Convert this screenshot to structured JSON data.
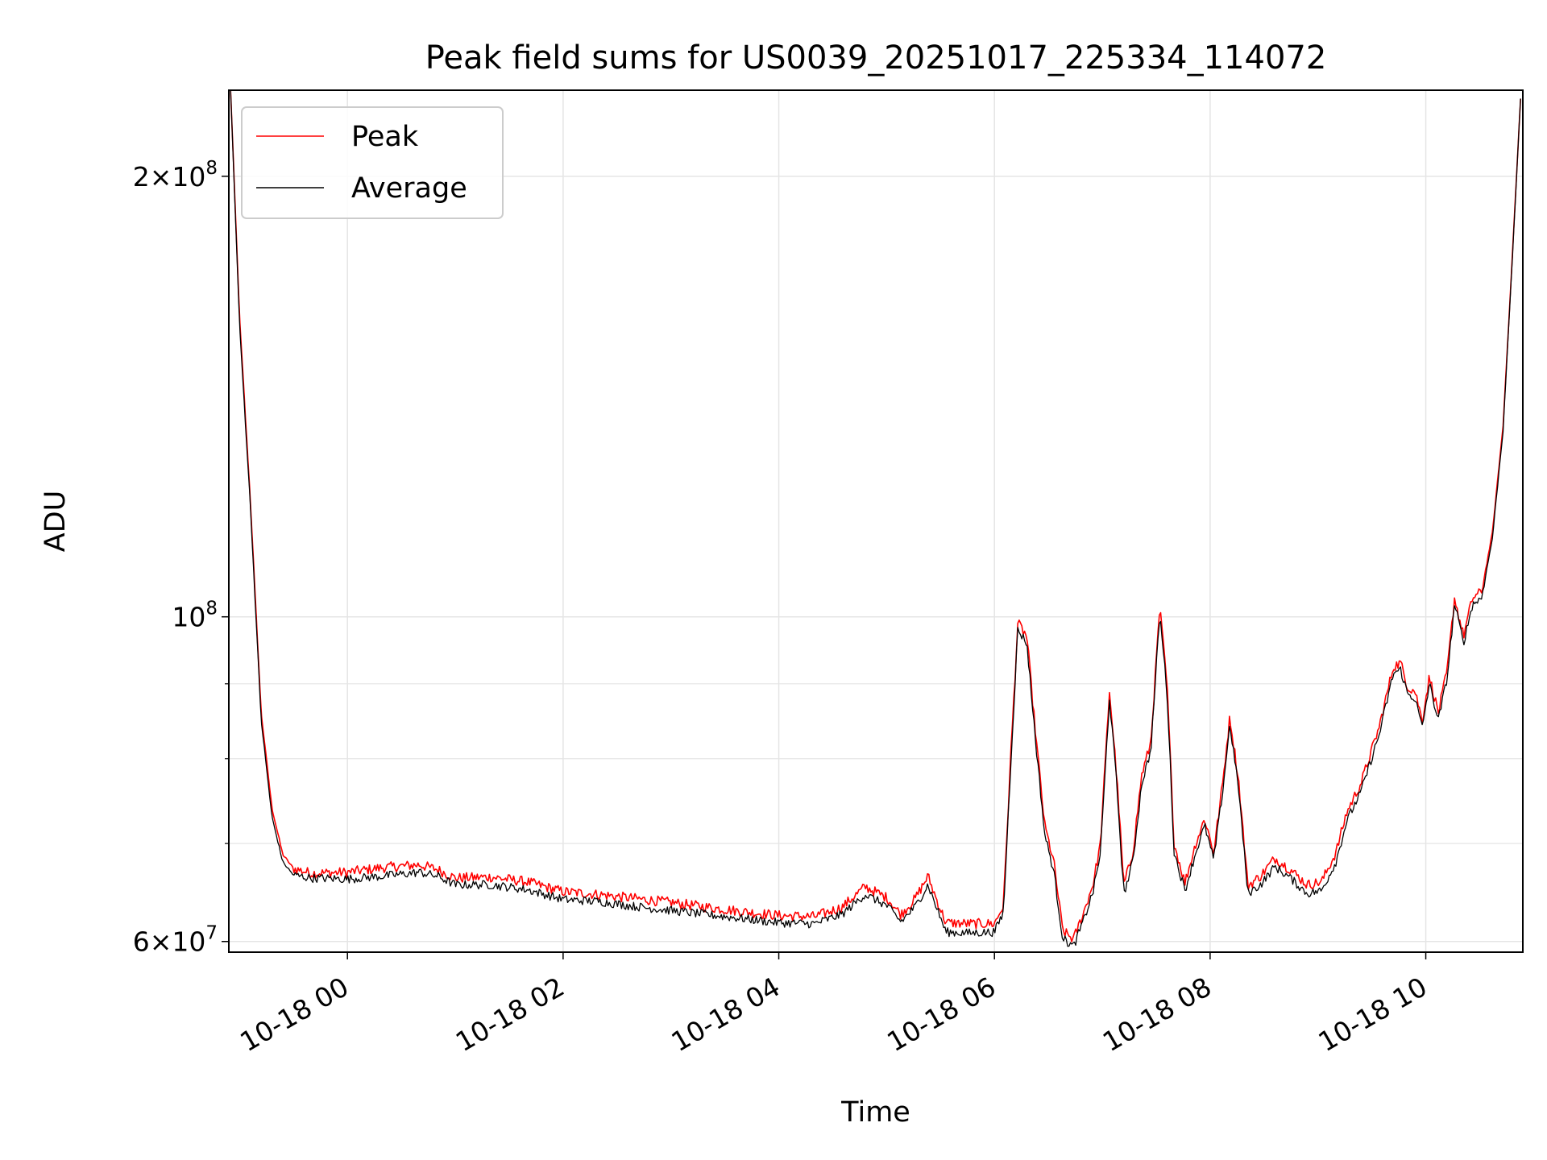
{
  "chart_data": {
    "type": "line",
    "title": "Peak field sums for US0039_20251017_225334_114072",
    "xlabel": "Time",
    "ylabel": "ADU",
    "y_scale": "log",
    "xlim": [
      "2025-10-17 22:54",
      "2025-10-18 10:54"
    ],
    "ylim": [
      59000000,
      229000000
    ],
    "x_ticks": [
      "10-18 00",
      "10-18 02",
      "10-18 04",
      "10-18 06",
      "10-18 08",
      "10-18 10"
    ],
    "y_ticks": [
      {
        "value": 60000000,
        "base": "6×10",
        "exp": "7"
      },
      {
        "value": 100000000,
        "base": "10",
        "exp": "8"
      },
      {
        "value": 200000000,
        "base": "2×10",
        "exp": "8"
      }
    ],
    "grid": true,
    "legend": {
      "placement": "upper left"
    },
    "colors": {
      "peak": "#ff0000",
      "average": "#000000",
      "grid": "#e5e5e5"
    },
    "series": [
      {
        "name": "Peak",
        "color": "#ff0000",
        "points": [
          [
            "2025-10-17 22:55",
            229000000
          ],
          [
            "2025-10-17 23:00",
            160000000
          ],
          [
            "2025-10-17 23:06",
            120000000
          ],
          [
            "2025-10-17 23:12",
            86000000
          ],
          [
            "2025-10-17 23:18",
            74000000
          ],
          [
            "2025-10-17 23:24",
            68800000
          ],
          [
            "2025-10-17 23:30",
            67300000
          ],
          [
            "2025-10-17 23:40",
            66800000
          ],
          [
            "2025-10-18 00:00",
            66900000
          ],
          [
            "2025-10-18 00:20",
            67400000
          ],
          [
            "2025-10-18 00:40",
            67700000
          ],
          [
            "2025-10-18 00:50",
            67200000
          ],
          [
            "2025-10-18 01:00",
            66300000
          ],
          [
            "2025-10-18 01:20",
            66400000
          ],
          [
            "2025-10-18 01:40",
            65900000
          ],
          [
            "2025-10-18 02:00",
            64900000
          ],
          [
            "2025-10-18 02:20",
            64600000
          ],
          [
            "2025-10-18 02:40",
            64200000
          ],
          [
            "2025-10-18 03:00",
            63800000
          ],
          [
            "2025-10-18 03:30",
            63100000
          ],
          [
            "2025-10-18 04:00",
            62500000
          ],
          [
            "2025-10-18 04:20",
            62400000
          ],
          [
            "2025-10-18 04:35",
            63300000
          ],
          [
            "2025-10-18 04:48",
            65400000
          ],
          [
            "2025-10-18 05:00",
            64300000
          ],
          [
            "2025-10-18 05:08",
            62600000
          ],
          [
            "2025-10-18 05:16",
            64200000
          ],
          [
            "2025-10-18 05:23",
            66500000
          ],
          [
            "2025-10-18 05:28",
            64000000
          ],
          [
            "2025-10-18 05:33",
            61800000
          ],
          [
            "2025-10-18 05:45",
            61700000
          ],
          [
            "2025-10-18 06:00",
            61700000
          ],
          [
            "2025-10-18 06:05",
            63500000
          ],
          [
            "2025-10-18 06:09",
            80000000
          ],
          [
            "2025-10-18 06:13",
            99000000
          ],
          [
            "2025-10-18 06:18",
            97000000
          ],
          [
            "2025-10-18 06:23",
            83000000
          ],
          [
            "2025-10-18 06:28",
            72000000
          ],
          [
            "2025-10-18 06:33",
            68000000
          ],
          [
            "2025-10-18 06:38",
            61000000
          ],
          [
            "2025-10-18 06:44",
            60200000
          ],
          [
            "2025-10-18 06:50",
            63000000
          ],
          [
            "2025-10-18 06:55",
            65800000
          ],
          [
            "2025-10-18 06:59",
            70000000
          ],
          [
            "2025-10-18 07:04",
            89000000
          ],
          [
            "2025-10-18 07:08",
            78000000
          ],
          [
            "2025-10-18 07:12",
            65500000
          ],
          [
            "2025-10-18 07:17",
            69000000
          ],
          [
            "2025-10-18 07:22",
            78000000
          ],
          [
            "2025-10-18 07:27",
            82000000
          ],
          [
            "2025-10-18 07:32",
            101500000
          ],
          [
            "2025-10-18 07:36",
            90000000
          ],
          [
            "2025-10-18 07:40",
            70000000
          ],
          [
            "2025-10-18 07:46",
            65800000
          ],
          [
            "2025-10-18 07:52",
            70000000
          ],
          [
            "2025-10-18 07:57",
            72800000
          ],
          [
            "2025-10-18 08:02",
            69000000
          ],
          [
            "2025-10-18 08:07",
            77000000
          ],
          [
            "2025-10-18 08:11",
            85500000
          ],
          [
            "2025-10-18 08:16",
            77000000
          ],
          [
            "2025-10-18 08:21",
            65500000
          ],
          [
            "2025-10-18 08:28",
            66500000
          ],
          [
            "2025-10-18 08:36",
            68400000
          ],
          [
            "2025-10-18 08:44",
            67300000
          ],
          [
            "2025-10-18 08:54",
            65600000
          ],
          [
            "2025-10-18 09:02",
            65900000
          ],
          [
            "2025-10-18 09:10",
            69000000
          ],
          [
            "2025-10-18 09:16",
            73500000
          ],
          [
            "2025-10-18 09:24",
            77000000
          ],
          [
            "2025-10-18 09:34",
            84000000
          ],
          [
            "2025-10-18 09:42",
            92500000
          ],
          [
            "2025-10-18 09:46",
            93000000
          ],
          [
            "2025-10-18 09:50",
            89500000
          ],
          [
            "2025-10-18 09:54",
            89000000
          ],
          [
            "2025-10-18 09:58",
            85000000
          ],
          [
            "2025-10-18 10:02",
            91000000
          ],
          [
            "2025-10-18 10:07",
            86000000
          ],
          [
            "2025-10-18 10:12",
            92000000
          ],
          [
            "2025-10-18 10:16",
            103000000
          ],
          [
            "2025-10-18 10:21",
            97000000
          ],
          [
            "2025-10-18 10:26",
            103000000
          ],
          [
            "2025-10-18 10:31",
            104000000
          ],
          [
            "2025-10-18 10:37",
            114000000
          ],
          [
            "2025-10-18 10:43",
            135000000
          ],
          [
            "2025-10-18 10:48",
            175000000
          ],
          [
            "2025-10-18 10:53",
            229000000
          ]
        ]
      },
      {
        "name": "Average",
        "color": "#000000",
        "points": [
          [
            "2025-10-17 22:55",
            229000000
          ],
          [
            "2025-10-17 23:00",
            158000000
          ],
          [
            "2025-10-17 23:06",
            119000000
          ],
          [
            "2025-10-17 23:12",
            85000000
          ],
          [
            "2025-10-17 23:18",
            73000000
          ],
          [
            "2025-10-17 23:24",
            68000000
          ],
          [
            "2025-10-17 23:30",
            66600000
          ],
          [
            "2025-10-17 23:40",
            66300000
          ],
          [
            "2025-10-18 00:00",
            66200000
          ],
          [
            "2025-10-18 00:20",
            66500000
          ],
          [
            "2025-10-18 00:40",
            66900000
          ],
          [
            "2025-10-18 00:50",
            66500000
          ],
          [
            "2025-10-18 01:00",
            65600000
          ],
          [
            "2025-10-18 01:20",
            65600000
          ],
          [
            "2025-10-18 01:40",
            65100000
          ],
          [
            "2025-10-18 02:00",
            64100000
          ],
          [
            "2025-10-18 02:20",
            63900000
          ],
          [
            "2025-10-18 02:40",
            63400000
          ],
          [
            "2025-10-18 03:00",
            63000000
          ],
          [
            "2025-10-18 03:30",
            62400000
          ],
          [
            "2025-10-18 04:00",
            61800000
          ],
          [
            "2025-10-18 04:20",
            61700000
          ],
          [
            "2025-10-18 04:35",
            62600000
          ],
          [
            "2025-10-18 04:48",
            64600000
          ],
          [
            "2025-10-18 05:00",
            63500000
          ],
          [
            "2025-10-18 05:08",
            61900000
          ],
          [
            "2025-10-18 05:16",
            63400000
          ],
          [
            "2025-10-18 05:23",
            65600000
          ],
          [
            "2025-10-18 05:28",
            63200000
          ],
          [
            "2025-10-18 05:33",
            60900000
          ],
          [
            "2025-10-18 05:45",
            60800000
          ],
          [
            "2025-10-18 06:00",
            60900000
          ],
          [
            "2025-10-18 06:05",
            62800000
          ],
          [
            "2025-10-18 06:09",
            79000000
          ],
          [
            "2025-10-18 06:13",
            98000000
          ],
          [
            "2025-10-18 06:18",
            96000000
          ],
          [
            "2025-10-18 06:23",
            82000000
          ],
          [
            "2025-10-18 06:28",
            71000000
          ],
          [
            "2025-10-18 06:33",
            67000000
          ],
          [
            "2025-10-18 06:38",
            60300000
          ],
          [
            "2025-10-18 06:44",
            59500000
          ],
          [
            "2025-10-18 06:50",
            62200000
          ],
          [
            "2025-10-18 06:55",
            65000000
          ],
          [
            "2025-10-18 06:59",
            69000000
          ],
          [
            "2025-10-18 07:04",
            88000000
          ],
          [
            "2025-10-18 07:08",
            77000000
          ],
          [
            "2025-10-18 07:12",
            64600000
          ],
          [
            "2025-10-18 07:17",
            68000000
          ],
          [
            "2025-10-18 07:22",
            77000000
          ],
          [
            "2025-10-18 07:27",
            81000000
          ],
          [
            "2025-10-18 07:32",
            100500000
          ],
          [
            "2025-10-18 07:36",
            89000000
          ],
          [
            "2025-10-18 07:40",
            69000000
          ],
          [
            "2025-10-18 07:46",
            65000000
          ],
          [
            "2025-10-18 07:52",
            69000000
          ],
          [
            "2025-10-18 07:57",
            72000000
          ],
          [
            "2025-10-18 08:02",
            68200000
          ],
          [
            "2025-10-18 08:07",
            76000000
          ],
          [
            "2025-10-18 08:11",
            84500000
          ],
          [
            "2025-10-18 08:16",
            76000000
          ],
          [
            "2025-10-18 08:21",
            64700000
          ],
          [
            "2025-10-18 08:28",
            65600000
          ],
          [
            "2025-10-18 08:36",
            67500000
          ],
          [
            "2025-10-18 08:44",
            66400000
          ],
          [
            "2025-10-18 08:54",
            64700000
          ],
          [
            "2025-10-18 09:02",
            65000000
          ],
          [
            "2025-10-18 09:10",
            68000000
          ],
          [
            "2025-10-18 09:16",
            72500000
          ],
          [
            "2025-10-18 09:24",
            76000000
          ],
          [
            "2025-10-18 09:34",
            83000000
          ],
          [
            "2025-10-18 09:42",
            91500000
          ],
          [
            "2025-10-18 09:46",
            92000000
          ],
          [
            "2025-10-18 09:50",
            88500000
          ],
          [
            "2025-10-18 09:54",
            88000000
          ],
          [
            "2025-10-18 09:58",
            84000000
          ],
          [
            "2025-10-18 10:02",
            90000000
          ],
          [
            "2025-10-18 10:07",
            85000000
          ],
          [
            "2025-10-18 10:12",
            91000000
          ],
          [
            "2025-10-18 10:16",
            102000000
          ],
          [
            "2025-10-18 10:21",
            96000000
          ],
          [
            "2025-10-18 10:26",
            102000000
          ],
          [
            "2025-10-18 10:31",
            103000000
          ],
          [
            "2025-10-18 10:37",
            113000000
          ],
          [
            "2025-10-18 10:43",
            134000000
          ],
          [
            "2025-10-18 10:48",
            174000000
          ],
          [
            "2025-10-18 10:53",
            229000000
          ]
        ]
      }
    ]
  }
}
